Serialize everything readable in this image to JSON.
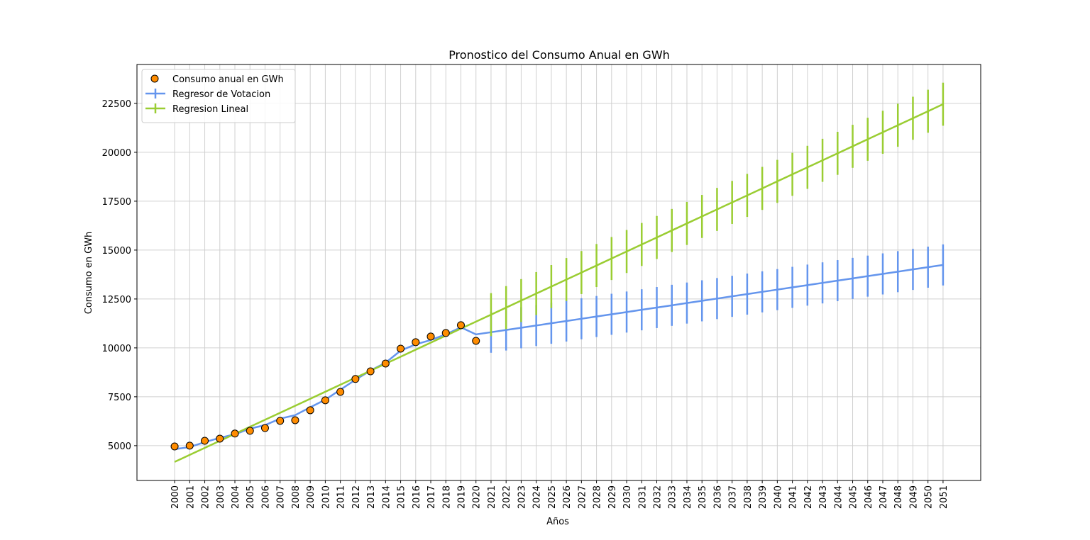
{
  "chart_data": {
    "type": "line",
    "title": "Pronostico del Consumo Anual en GWh",
    "x_label": "Años",
    "y_label": "Consumo en GWh",
    "x": [
      2000,
      2001,
      2002,
      2003,
      2004,
      2005,
      2006,
      2007,
      2008,
      2009,
      2010,
      2011,
      2012,
      2013,
      2014,
      2015,
      2016,
      2017,
      2018,
      2019,
      2020,
      2021,
      2022,
      2023,
      2024,
      2025,
      2026,
      2027,
      2028,
      2029,
      2030,
      2031,
      2032,
      2033,
      2034,
      2035,
      2036,
      2037,
      2038,
      2039,
      2040,
      2041,
      2042,
      2043,
      2044,
      2045,
      2046,
      2047,
      2048,
      2049,
      2050,
      2051
    ],
    "series": [
      {
        "name": "Consumo anual en GWh",
        "kind": "scatter",
        "color": "#ff8c00",
        "x": [
          2000,
          2001,
          2002,
          2003,
          2004,
          2005,
          2006,
          2007,
          2008,
          2009,
          2010,
          2011,
          2012,
          2013,
          2014,
          2015,
          2016,
          2017,
          2018,
          2019,
          2020
        ],
        "values": [
          4960,
          5000,
          5250,
          5360,
          5620,
          5760,
          5900,
          6270,
          6300,
          6810,
          7320,
          7750,
          8410,
          8800,
          9200,
          9960,
          10290,
          10580,
          10760,
          11160,
          10360
        ]
      },
      {
        "name": "Regresor de Votacion",
        "kind": "line",
        "color": "#6495ed",
        "values": [
          4820,
          4930,
          5180,
          5400,
          5580,
          5870,
          6050,
          6380,
          6560,
          6960,
          7350,
          7860,
          8370,
          8840,
          9240,
          9860,
          10180,
          10400,
          10690,
          11050,
          10690,
          10800,
          10915,
          11029,
          11144,
          11259,
          11374,
          11488,
          11603,
          11718,
          11832,
          11947,
          12062,
          12176,
          12291,
          12406,
          12521,
          12635,
          12750,
          12865,
          12979,
          13094,
          13209,
          13323,
          13438,
          13553,
          13668,
          13782,
          13897,
          14012,
          14126,
          14241
        ],
        "errors": [
          null,
          null,
          null,
          null,
          null,
          null,
          null,
          null,
          null,
          null,
          null,
          null,
          null,
          null,
          null,
          null,
          null,
          null,
          null,
          null,
          null,
          1050,
          1050,
          1050,
          1050,
          1050,
          1050,
          1050,
          1050,
          1050,
          1050,
          1050,
          1050,
          1050,
          1050,
          1050,
          1050,
          1050,
          1050,
          1050,
          1050,
          1050,
          1050,
          1050,
          1050,
          1050,
          1050,
          1050,
          1050,
          1050,
          1050,
          1050
        ]
      },
      {
        "name": "Regresion Lineal",
        "kind": "line",
        "color": "#9acd32",
        "values": [
          4170,
          4529,
          4887,
          5246,
          5604,
          5963,
          6322,
          6680,
          7039,
          7397,
          7756,
          8115,
          8473,
          8832,
          9190,
          9549,
          9908,
          10266,
          10625,
          10983,
          11342,
          11701,
          12059,
          12418,
          12776,
          13135,
          13494,
          13852,
          14211,
          14569,
          14928,
          15287,
          15645,
          16004,
          16362,
          16721,
          17080,
          17438,
          17797,
          18155,
          18514,
          18873,
          19231,
          19590,
          19948,
          20307,
          20666,
          21024,
          21383,
          21741,
          22100,
          22459
        ],
        "errors": [
          null,
          null,
          null,
          null,
          null,
          null,
          null,
          null,
          null,
          null,
          null,
          null,
          null,
          null,
          null,
          null,
          null,
          null,
          null,
          null,
          null,
          1100,
          1100,
          1100,
          1100,
          1100,
          1100,
          1100,
          1100,
          1100,
          1100,
          1100,
          1100,
          1100,
          1100,
          1100,
          1100,
          1100,
          1100,
          1100,
          1100,
          1100,
          1100,
          1100,
          1100,
          1100,
          1100,
          1100,
          1100,
          1100,
          1100,
          1100
        ]
      }
    ],
    "xlim": [
      1997.5,
      2053.5
    ],
    "ylim": [
      3220,
      24490
    ],
    "xticks": [
      2000,
      2001,
      2002,
      2003,
      2004,
      2005,
      2006,
      2007,
      2008,
      2009,
      2010,
      2011,
      2012,
      2013,
      2014,
      2015,
      2016,
      2017,
      2018,
      2019,
      2020,
      2021,
      2022,
      2023,
      2024,
      2025,
      2026,
      2027,
      2028,
      2029,
      2030,
      2031,
      2032,
      2033,
      2034,
      2035,
      2036,
      2037,
      2038,
      2039,
      2040,
      2041,
      2042,
      2043,
      2044,
      2045,
      2046,
      2047,
      2048,
      2049,
      2050,
      2051
    ],
    "yticks": [
      5000,
      7500,
      10000,
      12500,
      15000,
      17500,
      20000,
      22500
    ],
    "grid": true,
    "legend": "upper left"
  }
}
